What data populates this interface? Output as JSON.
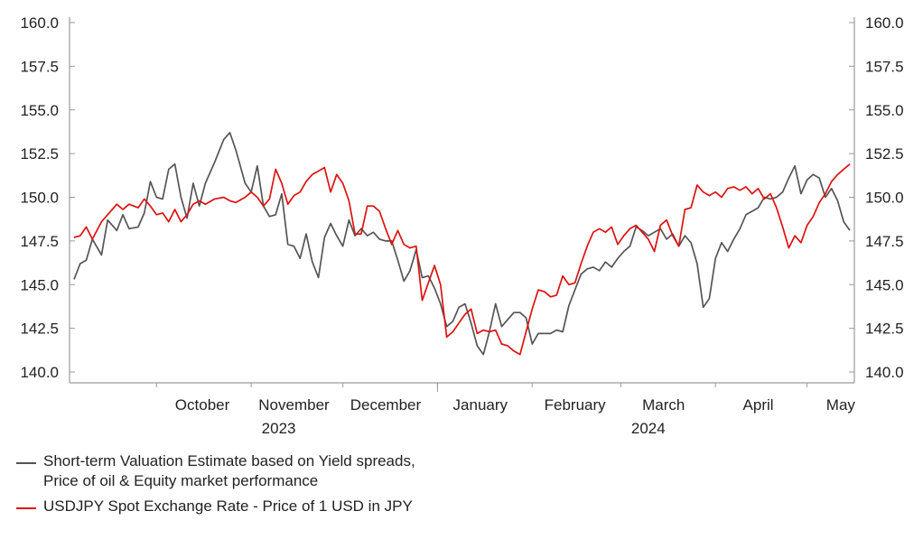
{
  "chart_data": {
    "type": "line",
    "title": "",
    "xlabel": "",
    "ylabel": "",
    "ylim": [
      140,
      160
    ],
    "y_ticks": [
      "140.0",
      "142.5",
      "145.0",
      "147.5",
      "150.0",
      "152.5",
      "155.0",
      "157.5",
      "160.0"
    ],
    "x_range": [
      "2023-09-04",
      "2024-05-15"
    ],
    "month_labels": [
      {
        "label": "October",
        "date": "2023-10-16"
      },
      {
        "label": "November",
        "date": "2023-11-15"
      },
      {
        "label": "December",
        "date": "2023-12-15"
      },
      {
        "label": "January",
        "date": "2024-01-15"
      },
      {
        "label": "February",
        "date": "2024-02-15"
      },
      {
        "label": "March",
        "date": "2024-03-15"
      },
      {
        "label": "April",
        "date": "2024-04-15"
      },
      {
        "label": "May",
        "date": "2024-05-12"
      }
    ],
    "month_ticks": [
      "2023-10-01",
      "2023-11-01",
      "2023-12-01",
      "2024-01-01",
      "2024-02-01",
      "2024-03-01",
      "2024-04-01",
      "2024-05-01"
    ],
    "year_labels": [
      {
        "label": "2023",
        "date": "2023-11-10"
      },
      {
        "label": "2024",
        "date": "2024-03-10"
      }
    ],
    "year_divider": "2024-01-01",
    "series": [
      {
        "name": "Short-term Valuation Estimate based on Yield spreads,\nPrice of oil & Equity market performance",
        "color": "#555555",
        "points": [
          [
            "2023-09-04",
            145.3
          ],
          [
            "2023-09-06",
            146.2
          ],
          [
            "2023-09-08",
            146.4
          ],
          [
            "2023-09-10",
            147.6
          ],
          [
            "2023-09-13",
            146.7
          ],
          [
            "2023-09-15",
            148.7
          ],
          [
            "2023-09-18",
            148.1
          ],
          [
            "2023-09-20",
            149.0
          ],
          [
            "2023-09-22",
            148.2
          ],
          [
            "2023-09-25",
            148.3
          ],
          [
            "2023-09-27",
            149.1
          ],
          [
            "2023-09-29",
            150.9
          ],
          [
            "2023-10-01",
            150.0
          ],
          [
            "2023-10-03",
            149.9
          ],
          [
            "2023-10-05",
            151.6
          ],
          [
            "2023-10-07",
            151.9
          ],
          [
            "2023-10-09",
            150.0
          ],
          [
            "2023-10-11",
            148.8
          ],
          [
            "2023-10-13",
            150.8
          ],
          [
            "2023-10-15",
            149.5
          ],
          [
            "2023-10-17",
            150.8
          ],
          [
            "2023-10-20",
            152.0
          ],
          [
            "2023-10-23",
            153.3
          ],
          [
            "2023-10-25",
            153.7
          ],
          [
            "2023-10-27",
            152.7
          ],
          [
            "2023-10-30",
            150.8
          ],
          [
            "2023-11-01",
            150.3
          ],
          [
            "2023-11-03",
            151.8
          ],
          [
            "2023-11-05",
            149.5
          ],
          [
            "2023-11-07",
            148.9
          ],
          [
            "2023-11-09",
            149.0
          ],
          [
            "2023-11-11",
            150.2
          ],
          [
            "2023-11-13",
            147.3
          ],
          [
            "2023-11-15",
            147.2
          ],
          [
            "2023-11-17",
            146.5
          ],
          [
            "2023-11-19",
            147.9
          ],
          [
            "2023-11-21",
            146.3
          ],
          [
            "2023-11-23",
            145.4
          ],
          [
            "2023-11-25",
            147.7
          ],
          [
            "2023-11-27",
            148.5
          ],
          [
            "2023-11-29",
            147.8
          ],
          [
            "2023-12-01",
            147.2
          ],
          [
            "2023-12-03",
            148.7
          ],
          [
            "2023-12-05",
            147.8
          ],
          [
            "2023-12-07",
            148.2
          ],
          [
            "2023-12-09",
            147.8
          ],
          [
            "2023-12-11",
            148.0
          ],
          [
            "2023-12-13",
            147.6
          ],
          [
            "2023-12-15",
            147.5
          ],
          [
            "2023-12-17",
            147.5
          ],
          [
            "2023-12-19",
            146.4
          ],
          [
            "2023-12-21",
            145.2
          ],
          [
            "2023-12-23",
            145.8
          ],
          [
            "2023-12-25",
            147.0
          ],
          [
            "2023-12-27",
            145.4
          ],
          [
            "2023-12-29",
            145.5
          ],
          [
            "2023-12-31",
            144.8
          ],
          [
            "2024-01-02",
            143.9
          ],
          [
            "2024-01-04",
            142.6
          ],
          [
            "2024-01-06",
            142.9
          ],
          [
            "2024-01-08",
            143.7
          ],
          [
            "2024-01-10",
            143.9
          ],
          [
            "2024-01-12",
            142.8
          ],
          [
            "2024-01-14",
            141.5
          ],
          [
            "2024-01-16",
            141.0
          ],
          [
            "2024-01-18",
            142.3
          ],
          [
            "2024-01-20",
            143.9
          ],
          [
            "2024-01-22",
            142.6
          ],
          [
            "2024-01-24",
            143.0
          ],
          [
            "2024-01-26",
            143.4
          ],
          [
            "2024-01-28",
            143.4
          ],
          [
            "2024-01-30",
            143.1
          ],
          [
            "2024-02-01",
            141.6
          ],
          [
            "2024-02-03",
            142.2
          ],
          [
            "2024-02-05",
            142.2
          ],
          [
            "2024-02-07",
            142.2
          ],
          [
            "2024-02-09",
            142.4
          ],
          [
            "2024-02-11",
            142.3
          ],
          [
            "2024-02-13",
            143.8
          ],
          [
            "2024-02-15",
            144.7
          ],
          [
            "2024-02-17",
            145.6
          ],
          [
            "2024-02-19",
            145.9
          ],
          [
            "2024-02-21",
            146.0
          ],
          [
            "2024-02-23",
            145.8
          ],
          [
            "2024-02-25",
            146.3
          ],
          [
            "2024-02-27",
            146.0
          ],
          [
            "2024-02-29",
            146.5
          ],
          [
            "2024-03-02",
            146.9
          ],
          [
            "2024-03-04",
            147.2
          ],
          [
            "2024-03-06",
            148.3
          ],
          [
            "2024-03-08",
            148.1
          ],
          [
            "2024-03-10",
            147.8
          ],
          [
            "2024-03-12",
            148.0
          ],
          [
            "2024-03-14",
            148.2
          ],
          [
            "2024-03-16",
            147.6
          ],
          [
            "2024-03-18",
            147.9
          ],
          [
            "2024-03-20",
            147.2
          ],
          [
            "2024-03-22",
            147.8
          ],
          [
            "2024-03-24",
            147.4
          ],
          [
            "2024-03-26",
            146.2
          ],
          [
            "2024-03-28",
            143.7
          ],
          [
            "2024-03-30",
            144.2
          ],
          [
            "2024-04-01",
            146.5
          ],
          [
            "2024-04-03",
            147.4
          ],
          [
            "2024-04-05",
            146.9
          ],
          [
            "2024-04-07",
            147.6
          ],
          [
            "2024-04-09",
            148.2
          ],
          [
            "2024-04-11",
            149.0
          ],
          [
            "2024-04-13",
            149.2
          ],
          [
            "2024-04-15",
            149.4
          ],
          [
            "2024-04-17",
            150.0
          ],
          [
            "2024-04-19",
            149.9
          ],
          [
            "2024-04-21",
            150.0
          ],
          [
            "2024-04-23",
            150.3
          ],
          [
            "2024-04-25",
            151.1
          ],
          [
            "2024-04-27",
            151.8
          ],
          [
            "2024-04-29",
            150.2
          ],
          [
            "2024-05-01",
            151.0
          ],
          [
            "2024-05-03",
            151.3
          ],
          [
            "2024-05-05",
            151.1
          ],
          [
            "2024-05-07",
            150.0
          ],
          [
            "2024-05-09",
            150.5
          ],
          [
            "2024-05-11",
            149.8
          ],
          [
            "2024-05-13",
            148.6
          ],
          [
            "2024-05-15",
            148.1
          ]
        ]
      },
      {
        "name": "USDJPY Spot Exchange Rate - Price of 1 USD in JPY",
        "color": "#dd1111",
        "points": [
          [
            "2023-09-04",
            147.7
          ],
          [
            "2023-09-06",
            147.8
          ],
          [
            "2023-09-08",
            148.3
          ],
          [
            "2023-09-10",
            147.6
          ],
          [
            "2023-09-13",
            148.6
          ],
          [
            "2023-09-15",
            149.0
          ],
          [
            "2023-09-18",
            149.6
          ],
          [
            "2023-09-20",
            149.3
          ],
          [
            "2023-09-22",
            149.6
          ],
          [
            "2023-09-25",
            149.4
          ],
          [
            "2023-09-27",
            149.9
          ],
          [
            "2023-09-29",
            149.5
          ],
          [
            "2023-10-01",
            149.0
          ],
          [
            "2023-10-03",
            149.1
          ],
          [
            "2023-10-05",
            148.6
          ],
          [
            "2023-10-07",
            149.3
          ],
          [
            "2023-10-09",
            148.6
          ],
          [
            "2023-10-11",
            149.0
          ],
          [
            "2023-10-13",
            149.6
          ],
          [
            "2023-10-15",
            149.8
          ],
          [
            "2023-10-17",
            149.6
          ],
          [
            "2023-10-20",
            149.9
          ],
          [
            "2023-10-23",
            150.0
          ],
          [
            "2023-10-25",
            149.8
          ],
          [
            "2023-10-27",
            149.7
          ],
          [
            "2023-10-30",
            150.0
          ],
          [
            "2023-11-01",
            150.3
          ],
          [
            "2023-11-03",
            150.0
          ],
          [
            "2023-11-05",
            149.5
          ],
          [
            "2023-11-07",
            149.9
          ],
          [
            "2023-11-09",
            151.6
          ],
          [
            "2023-11-11",
            150.8
          ],
          [
            "2023-11-13",
            149.6
          ],
          [
            "2023-11-15",
            150.1
          ],
          [
            "2023-11-17",
            150.3
          ],
          [
            "2023-11-19",
            150.9
          ],
          [
            "2023-11-21",
            151.3
          ],
          [
            "2023-11-23",
            151.5
          ],
          [
            "2023-11-25",
            151.7
          ],
          [
            "2023-11-27",
            150.3
          ],
          [
            "2023-11-29",
            151.3
          ],
          [
            "2023-12-01",
            150.8
          ],
          [
            "2023-12-03",
            149.8
          ],
          [
            "2023-12-05",
            147.9
          ],
          [
            "2023-12-07",
            147.9
          ],
          [
            "2023-12-09",
            149.5
          ],
          [
            "2023-12-11",
            149.5
          ],
          [
            "2023-12-13",
            149.2
          ],
          [
            "2023-12-15",
            148.2
          ],
          [
            "2023-12-17",
            147.3
          ],
          [
            "2023-12-19",
            148.1
          ],
          [
            "2023-12-21",
            147.3
          ],
          [
            "2023-12-23",
            147.1
          ],
          [
            "2023-12-25",
            147.2
          ],
          [
            "2023-12-27",
            144.1
          ],
          [
            "2023-12-29",
            145.1
          ],
          [
            "2023-12-31",
            146.1
          ],
          [
            "2024-01-02",
            145.0
          ],
          [
            "2024-01-04",
            142.0
          ],
          [
            "2024-01-06",
            142.3
          ],
          [
            "2024-01-08",
            142.8
          ],
          [
            "2024-01-10",
            143.3
          ],
          [
            "2024-01-12",
            143.6
          ],
          [
            "2024-01-14",
            142.2
          ],
          [
            "2024-01-16",
            142.4
          ],
          [
            "2024-01-18",
            142.3
          ],
          [
            "2024-01-20",
            142.4
          ],
          [
            "2024-01-22",
            141.6
          ],
          [
            "2024-01-24",
            141.5
          ],
          [
            "2024-01-26",
            141.2
          ],
          [
            "2024-01-28",
            141.0
          ],
          [
            "2024-01-30",
            142.3
          ],
          [
            "2024-02-01",
            143.6
          ],
          [
            "2024-02-03",
            144.7
          ],
          [
            "2024-02-05",
            144.6
          ],
          [
            "2024-02-07",
            144.3
          ],
          [
            "2024-02-09",
            144.4
          ],
          [
            "2024-02-11",
            145.5
          ],
          [
            "2024-02-13",
            145.0
          ],
          [
            "2024-02-15",
            145.1
          ],
          [
            "2024-02-17",
            146.2
          ],
          [
            "2024-02-19",
            147.2
          ],
          [
            "2024-02-21",
            148.0
          ],
          [
            "2024-02-23",
            148.2
          ],
          [
            "2024-02-25",
            148.0
          ],
          [
            "2024-02-27",
            148.3
          ],
          [
            "2024-02-29",
            147.3
          ],
          [
            "2024-03-02",
            147.8
          ],
          [
            "2024-03-04",
            148.2
          ],
          [
            "2024-03-06",
            148.4
          ],
          [
            "2024-03-08",
            148.0
          ],
          [
            "2024-03-10",
            147.6
          ],
          [
            "2024-03-12",
            146.9
          ],
          [
            "2024-03-14",
            148.4
          ],
          [
            "2024-03-16",
            148.7
          ],
          [
            "2024-03-18",
            147.8
          ],
          [
            "2024-03-20",
            147.2
          ],
          [
            "2024-03-22",
            149.3
          ],
          [
            "2024-03-24",
            149.4
          ],
          [
            "2024-03-26",
            150.7
          ],
          [
            "2024-03-28",
            150.3
          ],
          [
            "2024-03-30",
            150.1
          ],
          [
            "2024-04-01",
            150.3
          ],
          [
            "2024-04-03",
            150.0
          ],
          [
            "2024-04-05",
            150.5
          ],
          [
            "2024-04-07",
            150.6
          ],
          [
            "2024-04-09",
            150.4
          ],
          [
            "2024-04-11",
            150.6
          ],
          [
            "2024-04-13",
            150.2
          ],
          [
            "2024-04-15",
            150.5
          ],
          [
            "2024-04-17",
            149.9
          ],
          [
            "2024-04-19",
            150.2
          ],
          [
            "2024-04-21",
            149.4
          ],
          [
            "2024-04-23",
            148.3
          ],
          [
            "2024-04-25",
            147.1
          ],
          [
            "2024-04-27",
            147.8
          ],
          [
            "2024-04-29",
            147.4
          ],
          [
            "2024-05-01",
            148.4
          ],
          [
            "2024-05-03",
            148.9
          ],
          [
            "2024-05-05",
            149.7
          ],
          [
            "2024-05-07",
            150.2
          ],
          [
            "2024-05-09",
            150.9
          ],
          [
            "2024-05-11",
            151.3
          ],
          [
            "2024-05-13",
            151.6
          ],
          [
            "2024-05-15",
            151.9
          ]
        ]
      }
    ]
  }
}
